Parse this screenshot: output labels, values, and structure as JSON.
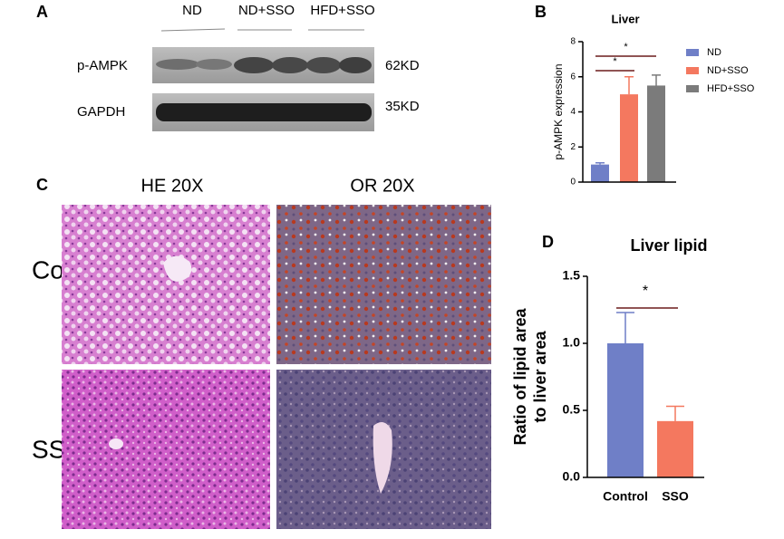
{
  "panel_labels": [
    "A",
    "B",
    "C",
    "D"
  ],
  "western_blot": {
    "columns": [
      "ND",
      "ND+SSO",
      "HFD+SSO"
    ],
    "rows": [
      {
        "label": "p-AMPK",
        "size": "62KD"
      },
      {
        "label": "GAPDH",
        "size": "35KD"
      }
    ]
  },
  "histology": {
    "columns": [
      "HE 20X",
      "OR 20X"
    ],
    "rows": [
      "Con",
      "SSO"
    ]
  },
  "chart_data": [
    {
      "type": "bar",
      "title": "Liver",
      "ylabel": "p-AMPK expression",
      "series": [
        {
          "name": "ND",
          "color": "#6f7fc7",
          "values": [
            1.0
          ],
          "errors": [
            0.1
          ]
        },
        {
          "name": "ND+SSO",
          "color": "#f4785f",
          "values": [
            5.0
          ],
          "errors": [
            1.0
          ]
        },
        {
          "name": "HFD+SSO",
          "color": "#7b7b7b",
          "values": [
            5.5
          ],
          "errors": [
            0.6
          ]
        }
      ],
      "ylim": [
        0,
        8
      ],
      "yticks": [
        0,
        2,
        4,
        6,
        8
      ],
      "legend": "right",
      "annotations": [
        "*",
        "*"
      ]
    },
    {
      "type": "bar",
      "title": "Liver lipid",
      "ylabel": [
        "Ratio of lipid area",
        "to liver area"
      ],
      "categories": [
        "Control",
        "SSO"
      ],
      "colors": [
        "#6f7fc7",
        "#f4785f"
      ],
      "values": [
        1.0,
        0.42
      ],
      "errors": [
        0.23,
        0.11
      ],
      "ylim": [
        0,
        1.5
      ],
      "yticks": [
        {
          "value": 0,
          "label": "0.0"
        },
        {
          "value": 0.5,
          "label": "0.5"
        },
        {
          "value": 1,
          "label": "1.0"
        },
        {
          "value": 1.5,
          "label": "1.5"
        }
      ],
      "annotations": [
        "*"
      ]
    }
  ]
}
